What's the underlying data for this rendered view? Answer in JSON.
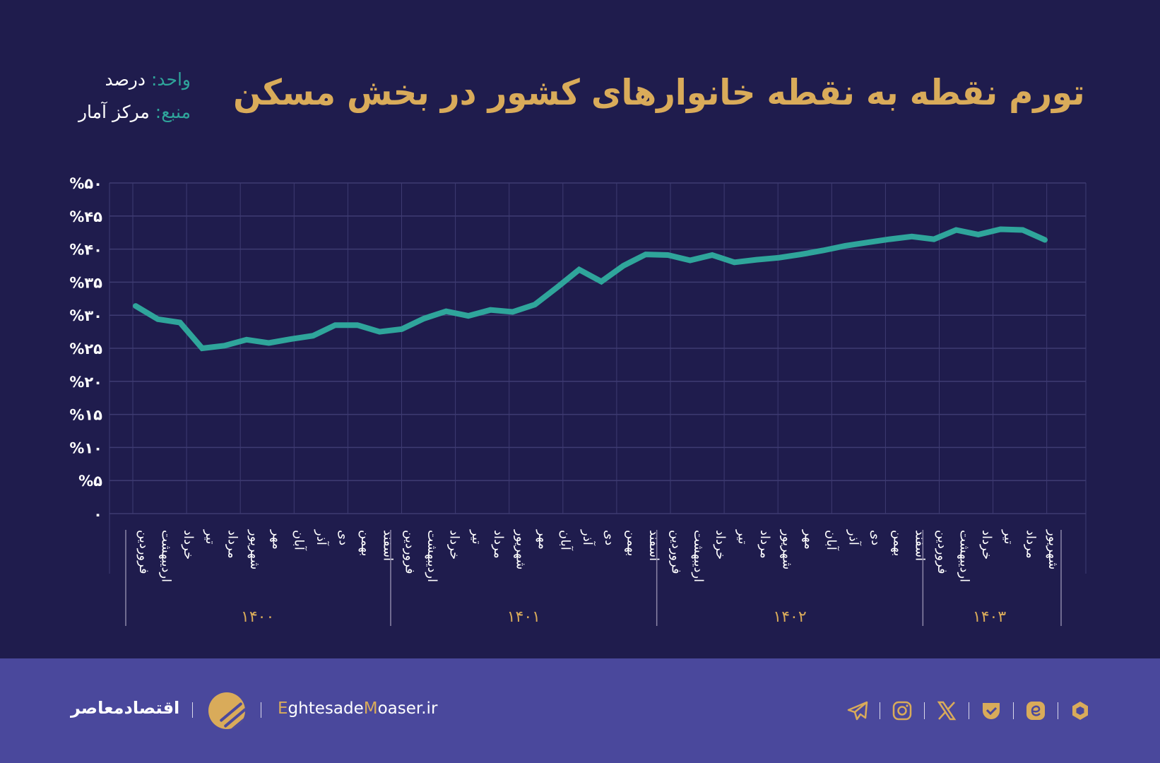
{
  "header": {
    "title": "تورم نقطه به نقطه خانوارهای کشور در بخش مسکن",
    "unit_label": "واحد:",
    "unit_value": "درصد",
    "source_label": "منبع:",
    "source_value": "مرکز آمار"
  },
  "chart_data": {
    "type": "line",
    "title": "تورم نقطه به نقطه خانوارهای کشور در بخش مسکن",
    "ylim": [
      0,
      50
    ],
    "yticks": [
      0,
      5,
      10,
      15,
      20,
      25,
      30,
      35,
      40,
      45,
      50
    ],
    "ytick_labels": [
      "۰",
      "%۵",
      "%۱۰",
      "%۱۵",
      "%۲۰",
      "%۲۵",
      "%۳۰",
      "%۳۵",
      "%۴۰",
      "%۴۵",
      "%۵۰"
    ],
    "grid": true,
    "line_color": "#2fa59b",
    "groups": [
      {
        "year": "۱۴۰۰",
        "months": [
          "فروردین",
          "اردیبهشت",
          "خرداد",
          "تیر",
          "مرداد",
          "شهریور",
          "مهر",
          "آبان",
          "آذر",
          "دی",
          "بهمن",
          "اسفند"
        ]
      },
      {
        "year": "۱۴۰۱",
        "months": [
          "فروردین",
          "اردیبهشت",
          "خرداد",
          "تیر",
          "مرداد",
          "شهریور",
          "مهر",
          "آبان",
          "آذر",
          "دی",
          "بهمن",
          "اسفند"
        ]
      },
      {
        "year": "۱۴۰۲",
        "months": [
          "فروردین",
          "اردیبهشت",
          "خرداد",
          "تیر",
          "مرداد",
          "شهریور",
          "مهر",
          "آبان",
          "آذر",
          "دی",
          "بهمن",
          "اسفند"
        ]
      },
      {
        "year": "۱۴۰۳",
        "months": [
          "فروردین",
          "اردیبهشت",
          "خرداد",
          "تیر",
          "مرداد",
          "شهریور"
        ]
      }
    ],
    "values": [
      31.4,
      29.4,
      28.9,
      25.0,
      25.4,
      26.3,
      25.8,
      26.4,
      26.9,
      28.5,
      28.5,
      27.5,
      27.9,
      29.5,
      30.6,
      29.9,
      30.8,
      30.5,
      31.6,
      34.2,
      36.9,
      35.1,
      37.5,
      39.2,
      39.1,
      38.3,
      39.1,
      38.0,
      38.4,
      38.7,
      39.2,
      39.8,
      40.5,
      41.0,
      41.5,
      41.9,
      41.5,
      42.9,
      42.2,
      43.0,
      42.9,
      41.4
    ]
  },
  "footer": {
    "brand_name": "اقتصادمعاصر",
    "site_e": "E",
    "site_mid": "ghtesade",
    "site_m": "M",
    "site_end": "oaser.ir",
    "social_icons": [
      "telegram-icon",
      "instagram-icon",
      "x-icon",
      "bale-icon",
      "eitaa-icon",
      "rubika-icon"
    ],
    "colors": {
      "background": "#1f1c4d",
      "footer": "#4a489c",
      "accent": "#d9ab5a",
      "line": "#2fa59b"
    }
  }
}
